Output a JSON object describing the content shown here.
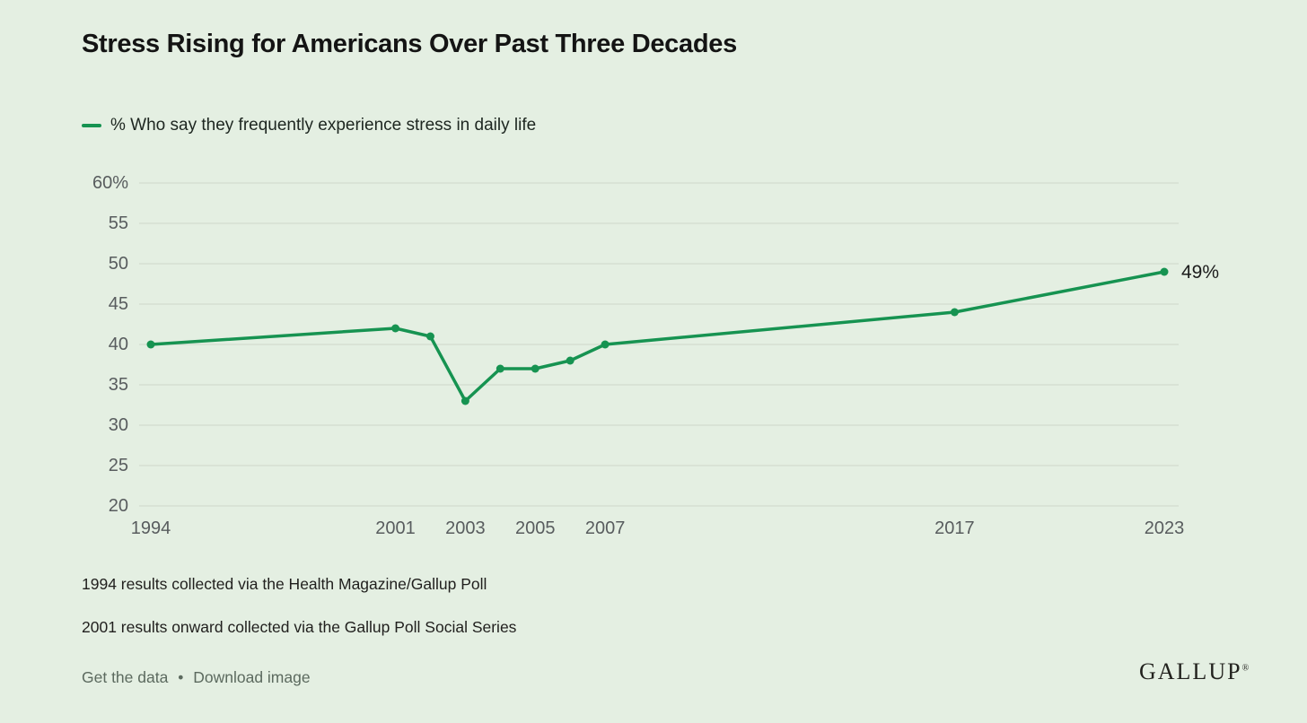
{
  "title": "Stress Rising for Americans Over Past Three Decades",
  "legend": {
    "label": "% Who say they frequently experience stress in daily life"
  },
  "chart_data": {
    "type": "line",
    "title": "Stress Rising for Americans Over Past Three Decades",
    "xlabel": "",
    "ylabel": "",
    "xlim": [
      1994,
      2023
    ],
    "ylim": [
      20,
      60
    ],
    "grid": true,
    "legend_position": "top-left",
    "series": [
      {
        "name": "% Who say they frequently experience stress in daily life",
        "points": [
          {
            "year": 1994,
            "value": 40
          },
          {
            "year": 2001,
            "value": 42
          },
          {
            "year": 2002,
            "value": 41
          },
          {
            "year": 2003,
            "value": 33
          },
          {
            "year": 2004,
            "value": 37
          },
          {
            "year": 2005,
            "value": 37
          },
          {
            "year": 2006,
            "value": 38
          },
          {
            "year": 2007,
            "value": 40
          },
          {
            "year": 2017,
            "value": 44
          },
          {
            "year": 2023,
            "value": 49
          }
        ]
      }
    ],
    "x_ticks": [
      {
        "year": 1994,
        "label": "1994"
      },
      {
        "year": 2001,
        "label": "2001"
      },
      {
        "year": 2003,
        "label": "2003"
      },
      {
        "year": 2005,
        "label": "2005"
      },
      {
        "year": 2007,
        "label": "2007"
      },
      {
        "year": 2017,
        "label": "2017"
      },
      {
        "year": 2023,
        "label": "2023"
      }
    ],
    "y_ticks": [
      {
        "v": 20,
        "label": "20"
      },
      {
        "v": 25,
        "label": "25"
      },
      {
        "v": 30,
        "label": "30"
      },
      {
        "v": 35,
        "label": "35"
      },
      {
        "v": 40,
        "label": "40"
      },
      {
        "v": 45,
        "label": "45"
      },
      {
        "v": 50,
        "label": "50"
      },
      {
        "v": 55,
        "label": "55"
      },
      {
        "v": 60,
        "label": "60%"
      }
    ],
    "end_label": "49%",
    "line_color": "#169351",
    "grid_color": "#d2dcd0",
    "tick_color": "#585c5e",
    "end_label_color": "#1c1c1c"
  },
  "footnotes": [
    "1994 results collected via the Health Magazine/Gallup Poll",
    "2001 results onward collected via the Gallup Poll Social Series"
  ],
  "links": {
    "get_data": "Get the data",
    "separator": "•",
    "download": "Download image"
  },
  "logo": {
    "text": "GALLUP",
    "reg": "®"
  },
  "colors": {
    "background": "#e4efe2",
    "accent_green": "#169351",
    "title_text": "#141414",
    "tick_text": "#585c5e",
    "footnote_text": "#201f1d",
    "link_text": "#5c6a5f"
  }
}
